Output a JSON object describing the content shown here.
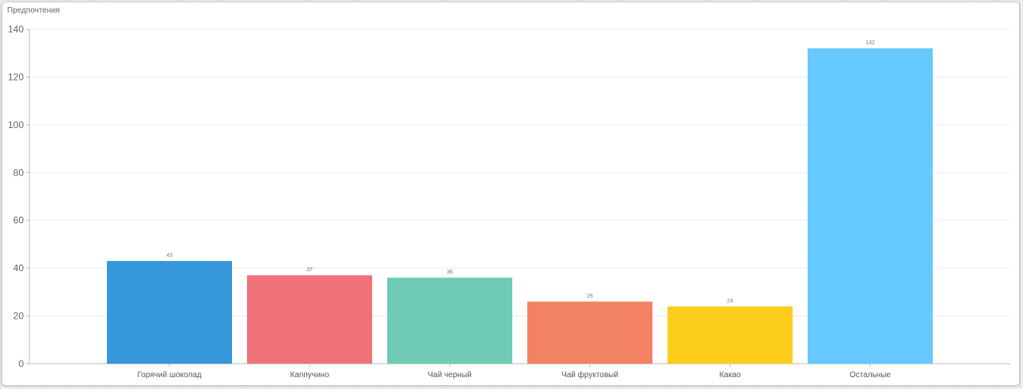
{
  "chart_data": {
    "type": "bar",
    "title": "Предпочтения",
    "categories": [
      "Горячий шоколад",
      "Каппучино",
      "Чай черный",
      "Чай фруктовый",
      "Какао",
      "Остальные"
    ],
    "values": [
      43,
      37,
      36,
      26,
      24,
      132
    ],
    "colors": [
      "#3598db",
      "#f07178",
      "#6fcab6",
      "#f28262",
      "#fdcd1b",
      "#66c9ff"
    ],
    "ylim": [
      0,
      140
    ],
    "yticks": [
      0,
      20,
      40,
      60,
      80,
      100,
      120,
      140
    ],
    "grid": true,
    "legend": "none",
    "data_labels": true
  }
}
